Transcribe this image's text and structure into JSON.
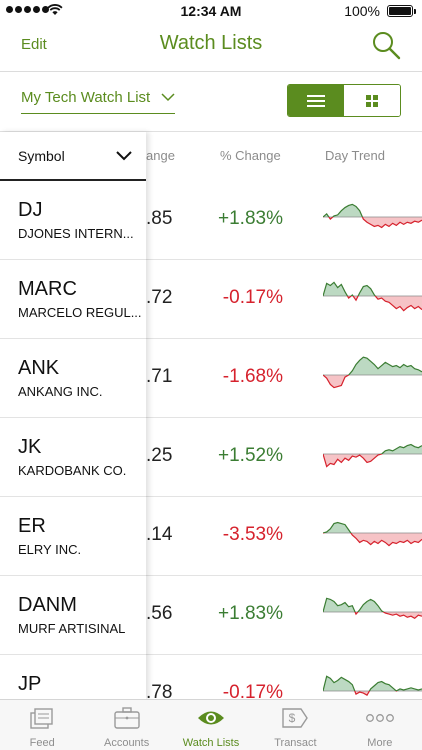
{
  "status_bar": {
    "time": "12:34 AM",
    "battery": "100%"
  },
  "nav": {
    "edit_label": "Edit",
    "title": "Watch Lists",
    "search_icon": "search-icon"
  },
  "list_selector": {
    "value": "My Tech Watch List"
  },
  "view_toggle": {
    "selected": "list",
    "options": [
      "list-view-icon",
      "grid-view-icon"
    ]
  },
  "columns": {
    "symbol": "Symbol",
    "change": "ange",
    "pct_change": "% Change",
    "day_trend": "Day Trend"
  },
  "rows": [
    {
      "ticker": "DJ",
      "name": "DJONES INTERN...",
      "change": ".85",
      "pct": "+1.83%",
      "direction": "pos"
    },
    {
      "ticker": "MARC",
      "name": "MARCELO REGUL...",
      "change": ".72",
      "pct": "-0.17%",
      "direction": "neg"
    },
    {
      "ticker": "ANK",
      "name": "ANKANG INC.",
      "change": ".71",
      "pct": "-1.68%",
      "direction": "neg"
    },
    {
      "ticker": "JK",
      "name": "KARDOBANK CO.",
      "change": ".25",
      "pct": "+1.52%",
      "direction": "pos"
    },
    {
      "ticker": "ER",
      "name": "ELRY INC.",
      "change": ".14",
      "pct": "-3.53%",
      "direction": "neg"
    },
    {
      "ticker": "DANM",
      "name": "MURF ARTISINAL",
      "change": ".56",
      "pct": "+1.83%",
      "direction": "pos"
    },
    {
      "ticker": "JP",
      "name": "",
      "change": ".78",
      "pct": "-0.17%",
      "direction": "neg"
    }
  ],
  "tabs": [
    {
      "label": "Feed",
      "icon": "feed-icon",
      "active": false
    },
    {
      "label": "Accounts",
      "icon": "briefcase-icon",
      "active": false
    },
    {
      "label": "Watch Lists",
      "icon": "eye-icon",
      "active": true
    },
    {
      "label": "Transact",
      "icon": "dollar-tag-icon",
      "active": false
    },
    {
      "label": "More",
      "icon": "more-dots-icon",
      "active": false
    }
  ],
  "colors": {
    "accent": "#5b8c1f",
    "positive": "#3b7d33",
    "negative": "#d6222d",
    "trend_up_fill": "#bcd9c2",
    "trend_down_fill": "#f6c3c6"
  }
}
